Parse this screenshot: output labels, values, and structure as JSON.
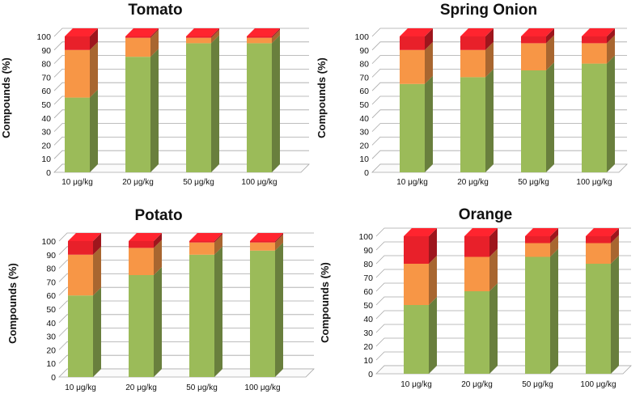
{
  "colors": {
    "green": "#9bbb59",
    "orange": "#f79646",
    "red": "#e8202a"
  },
  "chart_data": [
    {
      "type": "bar",
      "stacked": true,
      "title": "Tomato",
      "ylabel": "Compounds (%)",
      "xlabel": "",
      "ylim": [
        0,
        100
      ],
      "yticks": [
        0,
        10,
        20,
        30,
        40,
        50,
        60,
        70,
        80,
        90,
        100
      ],
      "categories": [
        "10 μg/kg",
        "20 μg/kg",
        "50 μg/kg",
        "100 μg/kg"
      ],
      "series": [
        {
          "name": "green",
          "values": [
            55,
            85,
            95,
            95
          ]
        },
        {
          "name": "orange",
          "values": [
            35,
            14,
            4,
            4
          ]
        },
        {
          "name": "red",
          "values": [
            10,
            1,
            1,
            1
          ]
        }
      ]
    },
    {
      "type": "bar",
      "stacked": true,
      "title": "Spring Onion",
      "ylabel": "Compounds (%)",
      "xlabel": "",
      "ylim": [
        0,
        100
      ],
      "yticks": [
        0,
        10,
        20,
        30,
        40,
        50,
        60,
        70,
        80,
        90,
        100
      ],
      "categories": [
        "10 μg/kg",
        "20 μg/kg",
        "50 μg/kg",
        "100 μg/kg"
      ],
      "series": [
        {
          "name": "green",
          "values": [
            65,
            70,
            75,
            80
          ]
        },
        {
          "name": "orange",
          "values": [
            25,
            20,
            20,
            15
          ]
        },
        {
          "name": "red",
          "values": [
            10,
            10,
            5,
            5
          ]
        }
      ]
    },
    {
      "type": "bar",
      "stacked": true,
      "title": "Potato",
      "ylabel": "Compounds (%)",
      "xlabel": "",
      "ylim": [
        0,
        100
      ],
      "yticks": [
        0,
        10,
        20,
        30,
        40,
        50,
        60,
        70,
        80,
        90,
        100
      ],
      "categories": [
        "10 μg/kg",
        "20 μg/kg",
        "50 μg/kg",
        "100 μg/kg"
      ],
      "series": [
        {
          "name": "green",
          "values": [
            60,
            75,
            90,
            93
          ]
        },
        {
          "name": "orange",
          "values": [
            30,
            20,
            9,
            6
          ]
        },
        {
          "name": "red",
          "values": [
            10,
            5,
            1,
            1
          ]
        }
      ]
    },
    {
      "type": "bar",
      "stacked": true,
      "title": "Orange",
      "ylabel": "Compounds (%)",
      "xlabel": "",
      "ylim": [
        0,
        100
      ],
      "yticks": [
        0,
        10,
        20,
        30,
        40,
        50,
        60,
        70,
        80,
        90,
        100
      ],
      "categories": [
        "10 μg/kg",
        "20 μg/kg",
        "50 μg/kg",
        "100 μg/kg"
      ],
      "series": [
        {
          "name": "green",
          "values": [
            50,
            60,
            85,
            80
          ]
        },
        {
          "name": "orange",
          "values": [
            30,
            25,
            10,
            15
          ]
        },
        {
          "name": "red",
          "values": [
            20,
            15,
            5,
            5
          ]
        }
      ]
    }
  ]
}
